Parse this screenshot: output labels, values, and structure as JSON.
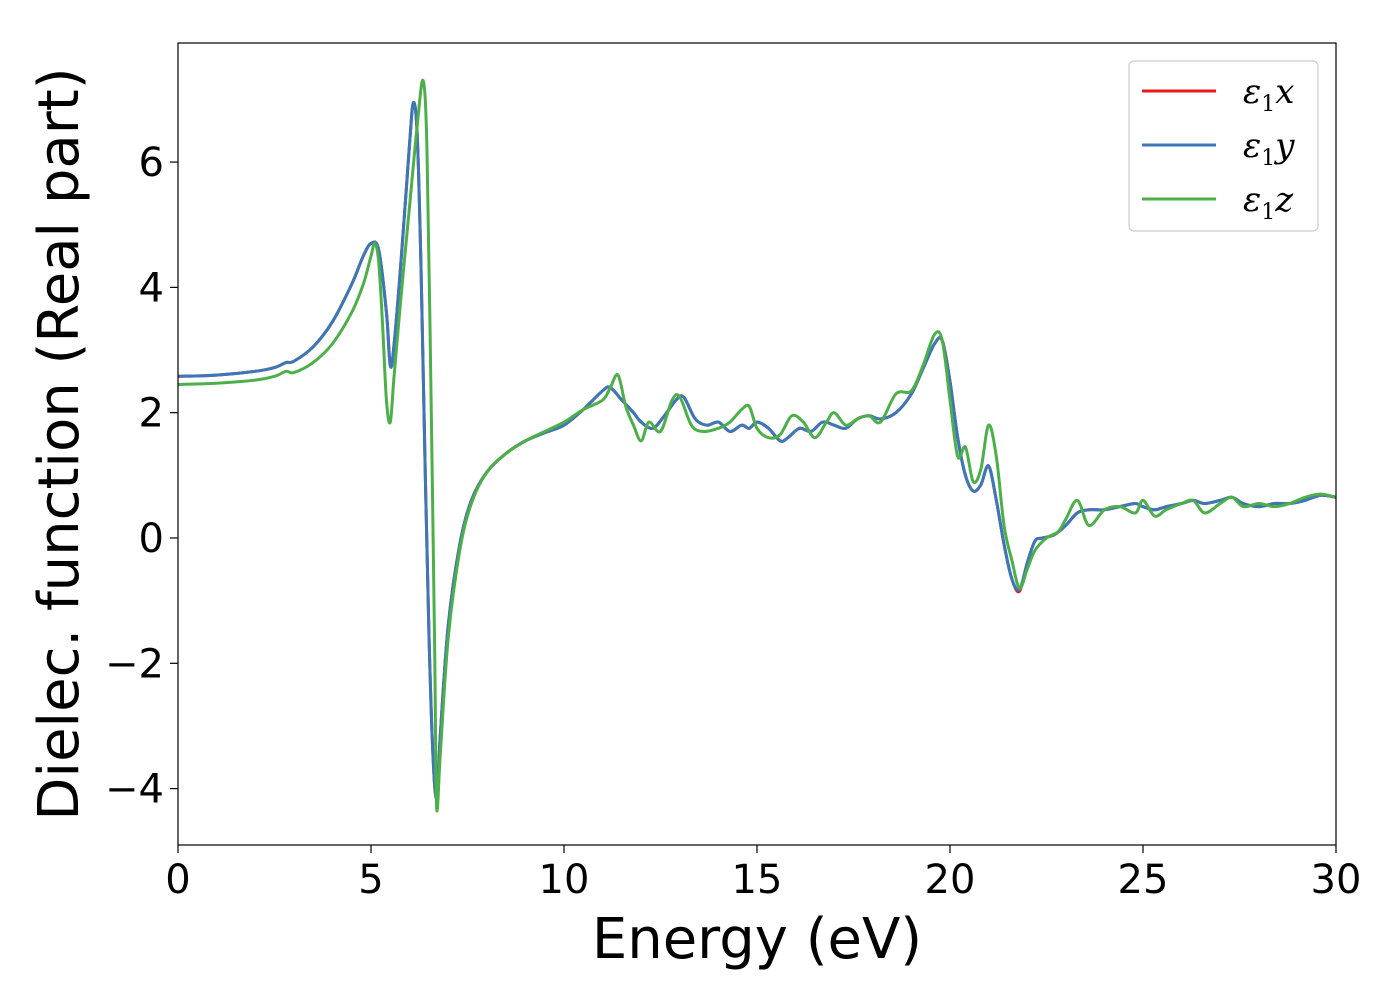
{
  "chart_data": {
    "type": "line",
    "xlabel": "Energy (eV)",
    "ylabel": "Dielec. function (Real part)",
    "xlim": [
      0,
      30
    ],
    "ylim": [
      -4.9,
      7.9
    ],
    "xticks": [
      0,
      5,
      10,
      15,
      20,
      25,
      30
    ],
    "yticks": [
      -4,
      -2,
      0,
      2,
      4,
      6
    ],
    "xtick_labels": [
      "0",
      "5",
      "10",
      "15",
      "20",
      "25",
      "30"
    ],
    "ytick_labels": [
      "−4",
      "−2",
      "0",
      "2",
      "4",
      "6"
    ],
    "legend_position": "top-right",
    "grid": false,
    "series": [
      {
        "name": "ε₁x",
        "legend_main": "ε",
        "legend_sub": "1",
        "legend_tail": "x",
        "color": "#e41a1c",
        "x": [
          0,
          1,
          2,
          2.5,
          2.8,
          3.0,
          3.5,
          4.0,
          4.5,
          4.8,
          5.0,
          5.2,
          5.4,
          5.5,
          5.6,
          5.8,
          6.0,
          6.1,
          6.2,
          6.3,
          6.4,
          6.5,
          6.6,
          6.7,
          6.8,
          7.0,
          7.3,
          7.6,
          8.0,
          8.5,
          9.0,
          9.5,
          10.0,
          10.5,
          11.0,
          11.2,
          11.5,
          11.8,
          12.0,
          12.3,
          12.6,
          12.9,
          13.1,
          13.4,
          13.7,
          14.0,
          14.3,
          14.6,
          14.8,
          15.0,
          15.3,
          15.6,
          15.8,
          16.1,
          16.4,
          16.7,
          17.0,
          17.3,
          17.6,
          17.9,
          18.2,
          18.6,
          19.0,
          19.3,
          19.6,
          19.8,
          20.0,
          20.2,
          20.4,
          20.6,
          20.8,
          21.0,
          21.2,
          21.4,
          21.6,
          21.8,
          22.0,
          22.2,
          22.4,
          22.7,
          23.0,
          23.3,
          23.6,
          24.0,
          24.4,
          24.8,
          25.0,
          25.3,
          25.6,
          26.0,
          26.3,
          26.6,
          27.0,
          27.3,
          27.6,
          28.0,
          28.4,
          28.8,
          29.2,
          29.6,
          30.0
        ],
        "y": [
          2.58,
          2.6,
          2.66,
          2.72,
          2.8,
          2.82,
          3.05,
          3.45,
          4.05,
          4.5,
          4.7,
          4.6,
          3.6,
          2.75,
          3.1,
          4.6,
          6.3,
          6.95,
          6.4,
          4.2,
          1.2,
          -1.5,
          -3.4,
          -4.15,
          -3.1,
          -1.4,
          -0.1,
          0.6,
          1.05,
          1.35,
          1.55,
          1.68,
          1.8,
          2.05,
          2.35,
          2.4,
          2.2,
          2.0,
          1.85,
          1.75,
          1.95,
          2.2,
          2.25,
          1.9,
          1.8,
          1.85,
          1.7,
          1.8,
          1.75,
          1.85,
          1.75,
          1.55,
          1.6,
          1.75,
          1.7,
          1.85,
          1.8,
          1.75,
          1.9,
          1.95,
          1.9,
          2.0,
          2.3,
          2.7,
          3.1,
          3.15,
          2.5,
          1.6,
          1.0,
          0.75,
          0.85,
          1.15,
          0.6,
          -0.1,
          -0.65,
          -0.85,
          -0.4,
          -0.05,
          0.0,
          0.05,
          0.2,
          0.4,
          0.45,
          0.45,
          0.5,
          0.55,
          0.5,
          0.45,
          0.5,
          0.55,
          0.6,
          0.55,
          0.6,
          0.65,
          0.55,
          0.5,
          0.55,
          0.55,
          0.6,
          0.68,
          0.65
        ]
      },
      {
        "name": "ε₁y",
        "legend_main": "ε",
        "legend_sub": "1",
        "legend_tail": "y",
        "color": "#3a78b8",
        "x": [
          0,
          1,
          2,
          2.5,
          2.8,
          3.0,
          3.5,
          4.0,
          4.5,
          4.8,
          5.0,
          5.2,
          5.4,
          5.5,
          5.6,
          5.8,
          6.0,
          6.1,
          6.2,
          6.3,
          6.4,
          6.5,
          6.6,
          6.7,
          6.8,
          7.0,
          7.3,
          7.6,
          8.0,
          8.5,
          9.0,
          9.5,
          10.0,
          10.5,
          11.0,
          11.2,
          11.5,
          11.8,
          12.0,
          12.3,
          12.6,
          12.9,
          13.1,
          13.4,
          13.7,
          14.0,
          14.3,
          14.6,
          14.8,
          15.0,
          15.3,
          15.6,
          15.8,
          16.1,
          16.4,
          16.7,
          17.0,
          17.3,
          17.6,
          17.9,
          18.2,
          18.6,
          19.0,
          19.3,
          19.6,
          19.8,
          20.0,
          20.2,
          20.4,
          20.6,
          20.8,
          21.0,
          21.2,
          21.4,
          21.6,
          21.8,
          22.0,
          22.2,
          22.4,
          22.7,
          23.0,
          23.3,
          23.6,
          24.0,
          24.4,
          24.8,
          25.0,
          25.3,
          25.6,
          26.0,
          26.3,
          26.6,
          27.0,
          27.3,
          27.6,
          28.0,
          28.4,
          28.8,
          29.2,
          29.6,
          30.0
        ],
        "y": [
          2.58,
          2.6,
          2.66,
          2.72,
          2.8,
          2.82,
          3.05,
          3.45,
          4.05,
          4.5,
          4.7,
          4.6,
          3.6,
          2.75,
          3.1,
          4.6,
          6.3,
          6.95,
          6.4,
          4.2,
          1.2,
          -1.5,
          -3.4,
          -4.15,
          -3.1,
          -1.4,
          -0.1,
          0.6,
          1.05,
          1.35,
          1.55,
          1.68,
          1.8,
          2.05,
          2.35,
          2.4,
          2.2,
          2.0,
          1.85,
          1.75,
          1.95,
          2.2,
          2.25,
          1.9,
          1.8,
          1.85,
          1.7,
          1.8,
          1.75,
          1.85,
          1.75,
          1.55,
          1.6,
          1.75,
          1.7,
          1.85,
          1.8,
          1.75,
          1.9,
          1.95,
          1.9,
          2.0,
          2.3,
          2.7,
          3.1,
          3.15,
          2.5,
          1.6,
          1.0,
          0.75,
          0.85,
          1.15,
          0.6,
          -0.1,
          -0.65,
          -0.82,
          -0.4,
          -0.05,
          0.0,
          0.05,
          0.2,
          0.4,
          0.45,
          0.45,
          0.5,
          0.55,
          0.5,
          0.45,
          0.5,
          0.55,
          0.6,
          0.55,
          0.6,
          0.65,
          0.55,
          0.5,
          0.55,
          0.55,
          0.6,
          0.68,
          0.65
        ]
      },
      {
        "name": "ε₁z",
        "legend_main": "ε",
        "legend_sub": "1",
        "legend_tail": "z",
        "color": "#4daf4a",
        "x": [
          0,
          1,
          2,
          2.5,
          2.8,
          3.0,
          3.5,
          4.0,
          4.5,
          4.8,
          5.0,
          5.1,
          5.2,
          5.3,
          5.4,
          5.5,
          5.6,
          5.8,
          6.0,
          6.2,
          6.35,
          6.45,
          6.55,
          6.65,
          6.7,
          6.8,
          7.0,
          7.3,
          7.6,
          8.0,
          8.5,
          9.0,
          9.5,
          10.0,
          10.5,
          11.0,
          11.2,
          11.4,
          11.6,
          11.8,
          12.0,
          12.2,
          12.5,
          12.8,
          13.0,
          13.3,
          13.6,
          14.0,
          14.3,
          14.6,
          14.8,
          15.0,
          15.3,
          15.6,
          15.9,
          16.2,
          16.5,
          16.8,
          17.0,
          17.3,
          17.6,
          17.9,
          18.2,
          18.6,
          19.0,
          19.3,
          19.6,
          19.8,
          20.0,
          20.2,
          20.4,
          20.6,
          20.8,
          21.0,
          21.2,
          21.4,
          21.6,
          21.8,
          22.0,
          22.2,
          22.5,
          22.8,
          23.0,
          23.3,
          23.6,
          24.0,
          24.4,
          24.8,
          25.0,
          25.3,
          25.6,
          26.0,
          26.3,
          26.6,
          27.0,
          27.3,
          27.6,
          28.0,
          28.4,
          28.8,
          29.2,
          29.6,
          30.0
        ],
        "y": [
          2.45,
          2.47,
          2.52,
          2.58,
          2.66,
          2.64,
          2.8,
          3.1,
          3.6,
          4.05,
          4.5,
          4.7,
          4.4,
          3.4,
          2.2,
          1.85,
          2.6,
          4.0,
          5.3,
          6.6,
          7.3,
          6.2,
          2.5,
          -1.8,
          -4.3,
          -3.4,
          -1.6,
          -0.2,
          0.55,
          1.05,
          1.35,
          1.55,
          1.7,
          1.85,
          2.05,
          2.2,
          2.4,
          2.6,
          2.1,
          1.8,
          1.55,
          1.85,
          1.7,
          2.2,
          2.25,
          1.8,
          1.7,
          1.75,
          1.85,
          2.05,
          2.1,
          1.75,
          1.6,
          1.65,
          1.95,
          1.85,
          1.6,
          1.85,
          2.0,
          1.8,
          1.9,
          1.95,
          1.85,
          2.3,
          2.35,
          2.75,
          3.25,
          3.15,
          2.2,
          1.3,
          1.45,
          0.9,
          1.1,
          1.8,
          1.3,
          0.2,
          -0.35,
          -0.8,
          -0.5,
          -0.2,
          0.0,
          0.1,
          0.3,
          0.6,
          0.2,
          0.45,
          0.5,
          0.4,
          0.6,
          0.35,
          0.45,
          0.55,
          0.6,
          0.4,
          0.55,
          0.65,
          0.5,
          0.55,
          0.5,
          0.55,
          0.65,
          0.7,
          0.65
        ]
      }
    ]
  }
}
